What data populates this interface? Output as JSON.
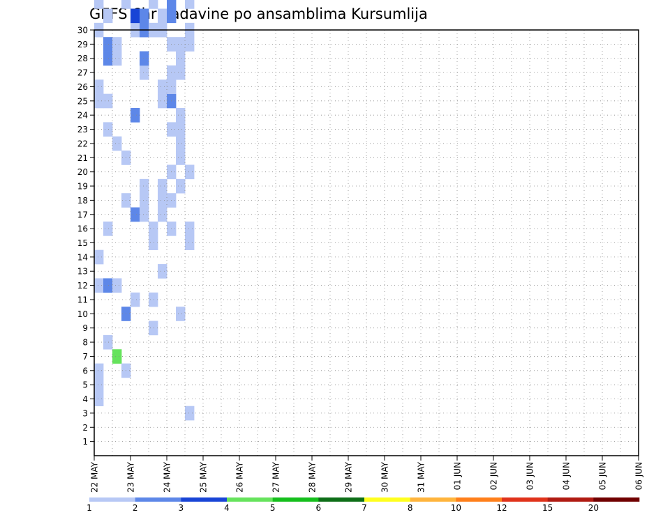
{
  "chart_data": {
    "type": "heatmap",
    "title": "GEFS 6hr padavine po ansamblima Kursumlija",
    "y_ticks": [
      "1",
      "2",
      "3",
      "4",
      "5",
      "6",
      "7",
      "8",
      "9",
      "10",
      "11",
      "12",
      "13",
      "14",
      "15",
      "16",
      "17",
      "18",
      "19",
      "20",
      "21",
      "22",
      "23",
      "24",
      "25",
      "26",
      "27",
      "28",
      "29",
      "30"
    ],
    "ylim": [
      0,
      30
    ],
    "x_ticks": [
      "22 MAY",
      "23 MAY",
      "24 MAY",
      "25 MAY",
      "26 MAY",
      "27 MAY",
      "28 MAY",
      "29 MAY",
      "30 MAY",
      "31 MAY",
      "01 JUN",
      "02 JUN",
      "03 JUN",
      "04 JUN",
      "05 JUN",
      "06 JUN"
    ],
    "time_steps_per_day": 4,
    "grid": true,
    "colorbar": {
      "labels": [
        "1",
        "2",
        "3",
        "4",
        "5",
        "6",
        "7",
        "8",
        "10",
        "12",
        "15",
        "20"
      ],
      "colors": [
        "#b7c8f5",
        "#5d87e8",
        "#1844d6",
        "#66e35c",
        "#15bf1c",
        "#0d6e17",
        "#ffff1e",
        "#ffb43c",
        "#ff7f1a",
        "#e0321a",
        "#b01a12",
        "#700000"
      ]
    },
    "cells": [
      [
        0,
        4,
        1
      ],
      [
        0,
        5,
        1
      ],
      [
        0,
        6,
        1
      ],
      [
        0,
        12,
        1
      ],
      [
        0,
        14,
        1
      ],
      [
        0,
        25,
        1
      ],
      [
        0,
        26,
        1
      ],
      [
        0,
        30,
        1
      ],
      [
        0,
        32,
        1
      ],
      [
        0,
        34,
        1
      ],
      [
        0,
        38,
        1
      ],
      [
        0,
        46,
        1
      ],
      [
        0,
        47,
        1
      ],
      [
        0,
        49,
        1
      ],
      [
        1,
        8,
        1
      ],
      [
        1,
        12,
        2
      ],
      [
        1,
        16,
        1
      ],
      [
        1,
        23,
        1
      ],
      [
        1,
        25,
        1
      ],
      [
        1,
        28,
        2
      ],
      [
        1,
        29,
        2
      ],
      [
        1,
        31,
        1
      ],
      [
        1,
        33,
        1
      ],
      [
        1,
        39,
        1
      ],
      [
        2,
        7,
        4
      ],
      [
        2,
        12,
        1
      ],
      [
        2,
        22,
        1
      ],
      [
        2,
        28,
        1
      ],
      [
        2,
        29,
        1
      ],
      [
        2,
        33,
        2
      ],
      [
        2,
        37,
        3
      ],
      [
        3,
        6,
        1
      ],
      [
        3,
        10,
        2
      ],
      [
        3,
        18,
        1
      ],
      [
        3,
        21,
        1
      ],
      [
        3,
        32,
        1
      ],
      [
        3,
        33,
        1
      ],
      [
        3,
        34,
        2
      ],
      [
        3,
        38,
        1
      ],
      [
        3,
        39,
        1
      ],
      [
        4,
        11,
        1
      ],
      [
        4,
        17,
        2
      ],
      [
        4,
        24,
        2
      ],
      [
        4,
        30,
        1
      ],
      [
        4,
        31,
        3
      ],
      [
        4,
        33,
        2
      ],
      [
        4,
        37,
        1
      ],
      [
        4,
        40,
        1
      ],
      [
        4,
        42,
        1
      ],
      [
        4,
        43,
        1
      ],
      [
        4,
        44,
        1
      ],
      [
        4,
        45,
        1
      ],
      [
        4,
        47,
        2
      ],
      [
        4,
        49,
        3
      ],
      [
        4,
        50,
        2
      ],
      [
        5,
        17,
        1
      ],
      [
        5,
        18,
        1
      ],
      [
        5,
        19,
        1
      ],
      [
        5,
        27,
        1
      ],
      [
        5,
        28,
        2
      ],
      [
        5,
        30,
        2
      ],
      [
        5,
        31,
        2
      ],
      [
        5,
        33,
        1
      ],
      [
        5,
        35,
        1
      ],
      [
        5,
        36,
        1
      ],
      [
        5,
        37,
        1
      ],
      [
        5,
        41,
        1
      ],
      [
        5,
        42,
        1
      ],
      [
        5,
        43,
        1
      ],
      [
        5,
        44,
        1
      ],
      [
        5,
        45,
        1
      ],
      [
        5,
        47,
        3
      ],
      [
        5,
        48,
        2
      ],
      [
        5,
        51,
        2
      ],
      [
        5,
        52,
        2
      ],
      [
        6,
        9,
        1
      ],
      [
        6,
        11,
        1
      ],
      [
        6,
        15,
        1
      ],
      [
        6,
        16,
        1
      ],
      [
        6,
        30,
        1
      ],
      [
        6,
        32,
        1
      ],
      [
        6,
        33,
        1
      ],
      [
        6,
        35,
        1
      ],
      [
        6,
        38,
        1
      ],
      [
        6,
        41,
        1
      ],
      [
        6,
        42,
        1
      ],
      [
        6,
        44,
        1
      ],
      [
        6,
        45,
        1
      ],
      [
        6,
        46,
        1
      ],
      [
        6,
        47,
        1
      ],
      [
        6,
        48,
        1
      ],
      [
        6,
        49,
        1
      ],
      [
        6,
        52,
        1
      ],
      [
        6,
        53,
        1
      ],
      [
        7,
        13,
        1
      ],
      [
        7,
        17,
        1
      ],
      [
        7,
        18,
        1
      ],
      [
        7,
        19,
        1
      ],
      [
        7,
        25,
        1
      ],
      [
        7,
        26,
        1
      ],
      [
        7,
        30,
        1
      ],
      [
        7,
        31,
        1
      ],
      [
        7,
        38,
        1
      ],
      [
        7,
        40,
        1
      ],
      [
        7,
        41,
        1
      ],
      [
        8,
        16,
        1
      ],
      [
        8,
        18,
        1
      ],
      [
        8,
        20,
        1
      ],
      [
        8,
        23,
        1
      ],
      [
        8,
        25,
        2
      ],
      [
        8,
        26,
        1
      ],
      [
        8,
        27,
        1
      ],
      [
        8,
        29,
        1
      ],
      [
        8,
        31,
        2
      ],
      [
        8,
        32,
        2
      ],
      [
        8,
        33,
        2
      ],
      [
        8,
        35,
        2
      ],
      [
        8,
        36,
        2
      ],
      [
        8,
        37,
        3
      ],
      [
        8,
        40,
        2
      ],
      [
        8,
        41,
        2
      ],
      [
        8,
        42,
        2
      ],
      [
        8,
        46,
        2
      ],
      [
        8,
        47,
        1
      ],
      [
        9,
        10,
        1
      ],
      [
        9,
        19,
        1
      ],
      [
        9,
        21,
        1
      ],
      [
        9,
        22,
        1
      ],
      [
        9,
        23,
        1
      ],
      [
        9,
        24,
        1
      ],
      [
        9,
        27,
        1
      ],
      [
        9,
        28,
        1
      ],
      [
        9,
        29,
        1
      ],
      [
        9,
        34,
        1
      ],
      [
        9,
        39,
        1
      ],
      [
        9,
        40,
        2
      ],
      [
        9,
        41,
        1
      ],
      [
        9,
        42,
        2
      ],
      [
        9,
        43,
        1
      ],
      [
        9,
        45,
        1
      ],
      [
        9,
        46,
        1
      ],
      [
        9,
        47,
        2
      ],
      [
        9,
        48,
        2
      ],
      [
        9,
        49,
        1
      ],
      [
        9,
        50,
        2
      ],
      [
        9,
        51,
        2
      ],
      [
        9,
        52,
        1
      ],
      [
        9,
        53,
        1
      ],
      [
        10,
        3,
        1
      ],
      [
        10,
        15,
        1
      ],
      [
        10,
        16,
        1
      ],
      [
        10,
        20,
        1
      ],
      [
        10,
        29,
        1
      ],
      [
        10,
        30,
        1
      ],
      [
        10,
        32,
        1
      ],
      [
        10,
        33,
        1
      ],
      [
        10,
        34,
        2
      ],
      [
        10,
        35,
        1
      ],
      [
        10,
        36,
        1
      ],
      [
        10,
        37,
        1
      ],
      [
        10,
        38,
        1
      ],
      [
        10,
        39,
        1
      ],
      [
        10,
        41,
        1
      ],
      [
        10,
        42,
        2
      ],
      [
        10,
        43,
        1
      ],
      [
        10,
        44,
        2
      ],
      [
        10,
        45,
        1
      ],
      [
        10,
        46,
        1
      ],
      [
        10,
        50,
        2
      ],
      [
        10,
        51,
        2
      ],
      [
        10,
        53,
        2
      ]
    ],
    "note": "cells = [day_index(0=22 MAY), member, category 1..12]"
  }
}
